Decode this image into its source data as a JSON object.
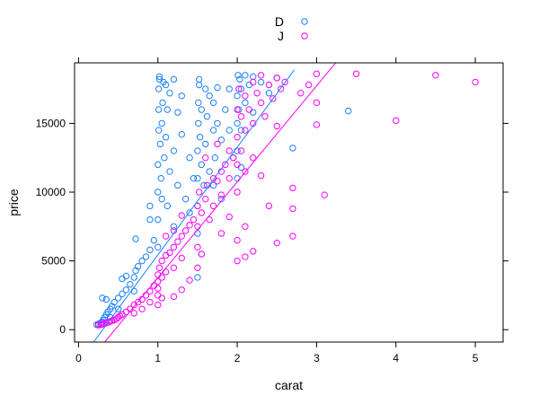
{
  "chart_data": {
    "type": "scatter",
    "title": "",
    "xlabel": "carat",
    "ylabel": "price",
    "xlim": [
      -0.05,
      5.35
    ],
    "ylim": [
      -900,
      19400
    ],
    "x_ticks": [
      0,
      1,
      2,
      3,
      4,
      5
    ],
    "x_tick_labels": [
      "0",
      "1",
      "2",
      "3",
      "4",
      "5"
    ],
    "y_ticks": [
      0,
      5000,
      10000,
      15000
    ],
    "y_tick_labels": [
      "0",
      "5000",
      "10000",
      "15000"
    ],
    "grid": false,
    "legend": {
      "position": "top-center"
    },
    "series": [
      {
        "name": "D",
        "color": "#1a80ff",
        "fit_line": {
          "x": [
            0.19,
            2.72
          ],
          "y": [
            -900,
            18900
          ]
        },
        "points": [
          [
            0.23,
            360
          ],
          [
            0.25,
            420
          ],
          [
            0.28,
            500
          ],
          [
            0.3,
            560
          ],
          [
            0.31,
            700
          ],
          [
            0.33,
            900
          ],
          [
            0.35,
            1100
          ],
          [
            0.37,
            1300
          ],
          [
            0.4,
            900
          ],
          [
            0.4,
            1500
          ],
          [
            0.42,
            1700
          ],
          [
            0.45,
            2000
          ],
          [
            0.5,
            1500
          ],
          [
            0.5,
            2300
          ],
          [
            0.55,
            2600
          ],
          [
            0.6,
            2900
          ],
          [
            0.65,
            3300
          ],
          [
            0.7,
            2800
          ],
          [
            0.7,
            3800
          ],
          [
            0.72,
            4300
          ],
          [
            0.75,
            4600
          ],
          [
            0.8,
            5000
          ],
          [
            0.85,
            5300
          ],
          [
            0.9,
            5800
          ],
          [
            0.72,
            6600
          ],
          [
            0.9,
            8000
          ],
          [
            0.9,
            9000
          ],
          [
            0.95,
            6500
          ],
          [
            0.3,
            2300
          ],
          [
            0.35,
            2200
          ],
          [
            0.6,
            3900
          ],
          [
            0.55,
            3700
          ],
          [
            1.0,
            6000
          ],
          [
            1.0,
            8000
          ],
          [
            1.0,
            10000
          ],
          [
            1.0,
            12000
          ],
          [
            1.01,
            14500
          ],
          [
            1.01,
            16000
          ],
          [
            1.01,
            17500
          ],
          [
            1.02,
            18400
          ],
          [
            1.02,
            18200
          ],
          [
            1.03,
            13500
          ],
          [
            1.04,
            11000
          ],
          [
            1.05,
            9500
          ],
          [
            1.05,
            15000
          ],
          [
            1.06,
            16500
          ],
          [
            1.07,
            18000
          ],
          [
            1.08,
            12500
          ],
          [
            1.1,
            17800
          ],
          [
            1.1,
            14000
          ],
          [
            1.12,
            9000
          ],
          [
            1.12,
            16000
          ],
          [
            1.15,
            17200
          ],
          [
            1.15,
            11500
          ],
          [
            1.2,
            18200
          ],
          [
            1.2,
            13000
          ],
          [
            1.2,
            7500
          ],
          [
            1.25,
            15800
          ],
          [
            1.25,
            10500
          ],
          [
            1.3,
            14200
          ],
          [
            1.3,
            17000
          ],
          [
            1.35,
            9500
          ],
          [
            1.4,
            12500
          ],
          [
            1.4,
            8500
          ],
          [
            1.45,
            11000
          ],
          [
            1.5,
            7000
          ],
          [
            1.5,
            9000
          ],
          [
            1.5,
            11000
          ],
          [
            1.5,
            13000
          ],
          [
            1.51,
            15000
          ],
          [
            1.51,
            16500
          ],
          [
            1.52,
            17800
          ],
          [
            1.52,
            18200
          ],
          [
            1.53,
            14000
          ],
          [
            1.55,
            12000
          ],
          [
            1.55,
            16000
          ],
          [
            1.58,
            10500
          ],
          [
            1.6,
            17500
          ],
          [
            1.6,
            13500
          ],
          [
            1.62,
            15500
          ],
          [
            1.65,
            11500
          ],
          [
            1.65,
            17000
          ],
          [
            1.7,
            14500
          ],
          [
            1.7,
            16500
          ],
          [
            1.72,
            12500
          ],
          [
            1.75,
            15000
          ],
          [
            1.75,
            17600
          ],
          [
            1.8,
            13800
          ],
          [
            1.85,
            16000
          ],
          [
            1.9,
            14500
          ],
          [
            1.9,
            17500
          ],
          [
            1.95,
            12500
          ],
          [
            1.5,
            3800
          ],
          [
            1.55,
            5500
          ],
          [
            1.8,
            9500
          ],
          [
            1.7,
            10500
          ],
          [
            2.0,
            11000
          ],
          [
            2.0,
            13000
          ],
          [
            2.0,
            15000
          ],
          [
            2.0,
            17000
          ],
          [
            2.01,
            18500
          ],
          [
            2.02,
            16000
          ],
          [
            2.03,
            18200
          ],
          [
            2.05,
            14500
          ],
          [
            2.05,
            17500
          ],
          [
            2.1,
            18500
          ],
          [
            2.1,
            16500
          ],
          [
            2.15,
            17800
          ],
          [
            2.2,
            18400
          ],
          [
            2.2,
            15800
          ],
          [
            2.3,
            18000
          ],
          [
            2.4,
            17200
          ],
          [
            2.5,
            18300
          ],
          [
            2.05,
            11800
          ],
          [
            2.7,
            13200
          ],
          [
            3.4,
            15900
          ]
        ]
      },
      {
        "name": "J",
        "color": "#ff00ff",
        "fit_line": {
          "x": [
            0.33,
            3.24
          ],
          "y": [
            -900,
            19400
          ]
        },
        "points": [
          [
            0.25,
            330
          ],
          [
            0.28,
            360
          ],
          [
            0.3,
            400
          ],
          [
            0.32,
            450
          ],
          [
            0.35,
            480
          ],
          [
            0.38,
            550
          ],
          [
            0.4,
            600
          ],
          [
            0.42,
            650
          ],
          [
            0.45,
            700
          ],
          [
            0.48,
            800
          ],
          [
            0.5,
            900
          ],
          [
            0.52,
            1000
          ],
          [
            0.55,
            1100
          ],
          [
            0.6,
            1300
          ],
          [
            0.65,
            1500
          ],
          [
            0.7,
            1800
          ],
          [
            0.75,
            2000
          ],
          [
            0.8,
            2200
          ],
          [
            0.85,
            2500
          ],
          [
            0.9,
            2800
          ],
          [
            0.95,
            3200
          ],
          [
            0.7,
            1200
          ],
          [
            0.8,
            1500
          ],
          [
            0.9,
            2000
          ],
          [
            1.0,
            2500
          ],
          [
            1.0,
            3000
          ],
          [
            1.0,
            3500
          ],
          [
            1.0,
            4000
          ],
          [
            1.02,
            4500
          ],
          [
            1.05,
            5000
          ],
          [
            1.05,
            3800
          ],
          [
            1.1,
            5400
          ],
          [
            1.1,
            4200
          ],
          [
            1.15,
            5600
          ],
          [
            1.2,
            6000
          ],
          [
            1.2,
            4500
          ],
          [
            1.25,
            6400
          ],
          [
            1.3,
            6800
          ],
          [
            1.3,
            5200
          ],
          [
            1.35,
            7200
          ],
          [
            1.4,
            7600
          ],
          [
            1.45,
            8000
          ],
          [
            1.1,
            6800
          ],
          [
            1.2,
            7200
          ],
          [
            1.3,
            8300
          ],
          [
            1.0,
            1800
          ],
          [
            1.05,
            2300
          ],
          [
            1.5,
            4500
          ],
          [
            1.5,
            6000
          ],
          [
            1.5,
            7500
          ],
          [
            1.5,
            9000
          ],
          [
            1.52,
            10000
          ],
          [
            1.55,
            8500
          ],
          [
            1.6,
            9500
          ],
          [
            1.62,
            10500
          ],
          [
            1.65,
            8000
          ],
          [
            1.7,
            11000
          ],
          [
            1.7,
            9000
          ],
          [
            1.75,
            10800
          ],
          [
            1.8,
            11500
          ],
          [
            1.8,
            9800
          ],
          [
            1.85,
            12000
          ],
          [
            1.9,
            11000
          ],
          [
            1.9,
            13000
          ],
          [
            1.95,
            12500
          ],
          [
            1.55,
            5500
          ],
          [
            1.6,
            12500
          ],
          [
            1.75,
            13500
          ],
          [
            2.0,
            10000
          ],
          [
            2.0,
            12000
          ],
          [
            2.0,
            14000
          ],
          [
            2.0,
            16000
          ],
          [
            2.02,
            17500
          ],
          [
            2.05,
            13000
          ],
          [
            2.05,
            15500
          ],
          [
            2.1,
            17000
          ],
          [
            2.1,
            14500
          ],
          [
            2.15,
            16000
          ],
          [
            2.2,
            18000
          ],
          [
            2.2,
            15000
          ],
          [
            2.25,
            17200
          ],
          [
            2.3,
            18500
          ],
          [
            2.3,
            16500
          ],
          [
            2.35,
            15500
          ],
          [
            2.4,
            17800
          ],
          [
            2.45,
            16800
          ],
          [
            2.5,
            18300
          ],
          [
            2.5,
            14800
          ],
          [
            2.55,
            17500
          ],
          [
            2.6,
            18000
          ],
          [
            2.1,
            11500
          ],
          [
            2.2,
            12500
          ],
          [
            2.0,
            5000
          ],
          [
            2.1,
            5300
          ],
          [
            2.2,
            5700
          ],
          [
            2.5,
            6300
          ],
          [
            2.7,
            6800
          ],
          [
            2.1,
            7500
          ],
          [
            2.4,
            9000
          ],
          [
            2.7,
            10300
          ],
          [
            3.1,
            9800
          ],
          [
            2.7,
            8800
          ],
          [
            2.0,
            6500
          ],
          [
            2.3,
            11200
          ],
          [
            3.0,
            14900
          ],
          [
            3.0,
            16500
          ],
          [
            3.0,
            18600
          ],
          [
            3.5,
            18600
          ],
          [
            4.0,
            15200
          ],
          [
            4.5,
            18500
          ],
          [
            5.0,
            18000
          ],
          [
            2.9,
            17800
          ],
          [
            2.8,
            17200
          ],
          [
            1.4,
            3600
          ],
          [
            1.3,
            2900
          ],
          [
            1.2,
            2400
          ],
          [
            1.8,
            7000
          ],
          [
            1.9,
            8200
          ]
        ]
      }
    ]
  }
}
